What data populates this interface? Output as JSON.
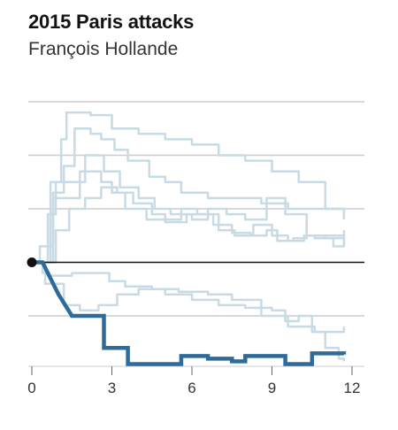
{
  "chart_data": {
    "type": "line",
    "title": "2015 Paris attacks",
    "subtitle": "François Hollande",
    "xlabel": "",
    "ylabel": "",
    "xlim": [
      0,
      12
    ],
    "x_ticks": [
      "0",
      "3",
      "6",
      "9",
      "12"
    ],
    "ylim": [
      -2,
      3
    ],
    "y_grid": [
      -1,
      0,
      1,
      2,
      3
    ],
    "grid": true,
    "baseline_y": 0,
    "colors": {
      "highlight": "#2f6b9a",
      "others": "#c8dbe4",
      "grid": "#cccccc",
      "baseline": "#111111"
    },
    "highlight_series": {
      "x": [
        0,
        0.4,
        0.7,
        1.0,
        1.5,
        2.0,
        2.6,
        2.7,
        3.4,
        3.6,
        4.6,
        5.5,
        5.6,
        6.5,
        6.6,
        7.5,
        8.0,
        9.0,
        9.5,
        10.4,
        10.5,
        11.0,
        11.7
      ],
      "y": [
        0,
        0,
        -0.3,
        -0.6,
        -1.0,
        -1.0,
        -1.0,
        -1.6,
        -1.6,
        -1.9,
        -1.9,
        -1.9,
        -1.75,
        -1.75,
        -1.8,
        -1.85,
        -1.75,
        -1.75,
        -1.9,
        -1.9,
        -1.7,
        -1.7,
        -1.72
      ]
    },
    "series": [
      {
        "x": [
          0,
          0.7,
          1.1,
          1.3,
          1.8,
          2.2,
          3.0,
          4.0,
          5.0,
          6.0,
          7.0,
          8.0,
          9.0,
          10.0,
          11.0,
          11.7
        ],
        "y": [
          0,
          1.5,
          2.3,
          2.8,
          2.8,
          2.75,
          2.5,
          2.4,
          2.3,
          2.2,
          2.0,
          1.9,
          1.7,
          1.5,
          1.0,
          0.8
        ]
      },
      {
        "x": [
          0,
          0.8,
          1.2,
          1.6,
          2.2,
          2.6,
          3.1,
          3.6,
          4.4,
          5.0,
          5.6,
          6.6,
          7.6,
          8.6,
          9.6,
          10.6,
          11.7
        ],
        "y": [
          0,
          1.3,
          1.8,
          2.5,
          2.4,
          2.3,
          2.1,
          1.9,
          1.6,
          1.5,
          1.3,
          1.2,
          1.2,
          1.1,
          1.0,
          1.0,
          0.95
        ]
      },
      {
        "x": [
          0,
          0.6,
          0.9,
          1.5,
          2.0,
          2.7,
          3.3,
          4.0,
          4.6,
          5.2,
          6.0,
          6.6,
          7.3,
          8.0,
          8.8,
          9.5,
          10.3,
          11.7
        ],
        "y": [
          0,
          0.9,
          1.5,
          1.5,
          2.0,
          1.7,
          1.4,
          1.2,
          1.0,
          0.9,
          0.8,
          1.0,
          0.9,
          0.8,
          1.2,
          0.9,
          0.5,
          0.4
        ]
      },
      {
        "x": [
          0,
          0.9,
          1.4,
          2.0,
          2.6,
          3.2,
          3.8,
          4.5,
          5.0,
          5.6,
          6.2,
          7.0,
          7.6,
          8.3,
          9.0,
          9.6,
          10.2,
          11.0,
          11.7
        ],
        "y": [
          0,
          0.6,
          1.0,
          1.2,
          1.4,
          1.3,
          1.1,
          0.9,
          0.8,
          1.0,
          0.9,
          0.6,
          0.5,
          0.7,
          0.5,
          0.4,
          0.5,
          0.45,
          0.4
        ]
      },
      {
        "x": [
          0,
          0.3,
          0.8,
          1.8,
          2.6,
          3.0,
          3.5,
          4.3,
          5.0,
          5.8,
          6.8,
          7.5,
          8.2,
          8.8,
          9.2,
          9.8,
          10.3,
          10.6,
          11.3,
          11.7
        ],
        "y": [
          0,
          0.3,
          1.2,
          1.7,
          1.5,
          1.3,
          1.0,
          0.8,
          0.75,
          0.9,
          0.7,
          0.55,
          0.5,
          0.6,
          0.4,
          0.45,
          0.5,
          0.45,
          0.3,
          0.6
        ]
      },
      {
        "x": [
          0,
          0.4,
          0.6,
          1.5,
          2.2,
          2.9,
          3.5,
          4.5,
          5.5,
          6.6,
          7.5,
          8.6,
          9.6,
          10.6,
          11.7
        ],
        "y": [
          0,
          -0.2,
          -0.25,
          -0.2,
          -0.2,
          -0.35,
          -0.45,
          -0.5,
          -0.55,
          -0.6,
          -0.7,
          -1.0,
          -1.2,
          -1.3,
          -1.2
        ]
      },
      {
        "x": [
          0,
          0.5,
          1.2,
          1.8,
          2.5,
          3.2,
          4.0,
          5.0,
          6.0,
          7.0,
          8.0,
          9.0,
          9.5,
          10.0,
          10.5,
          11.0,
          11.5,
          11.7
        ],
        "y": [
          0,
          -0.4,
          -0.8,
          -0.9,
          -0.8,
          -0.6,
          -0.5,
          -0.6,
          -0.7,
          -0.8,
          -0.85,
          -0.9,
          -1.1,
          -1.0,
          -1.3,
          -1.6,
          -1.8,
          -1.85
        ]
      }
    ]
  }
}
